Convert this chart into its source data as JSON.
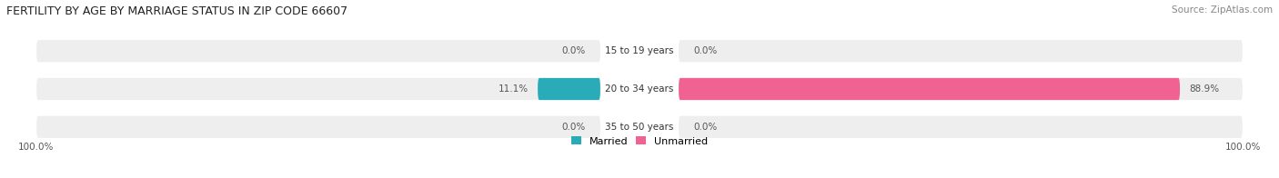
{
  "title": "FERTILITY BY AGE BY MARRIAGE STATUS IN ZIP CODE 66607",
  "source": "Source: ZipAtlas.com",
  "categories": [
    "15 to 19 years",
    "20 to 34 years",
    "35 to 50 years"
  ],
  "married_values": [
    0.0,
    11.1,
    0.0
  ],
  "unmarried_values": [
    0.0,
    88.9,
    0.0
  ],
  "married_color_strong": "#2aacb8",
  "married_color_light": "#a8d8dc",
  "unmarried_color_strong": "#f06292",
  "unmarried_color_light": "#f9c0d0",
  "bg_bar": "#eeeeee",
  "bg_figure": "#ffffff",
  "left_label": "100.0%",
  "right_label": "100.0%",
  "bar_height": 0.58,
  "figsize": [
    14.06,
    1.96
  ],
  "dpi": 100
}
